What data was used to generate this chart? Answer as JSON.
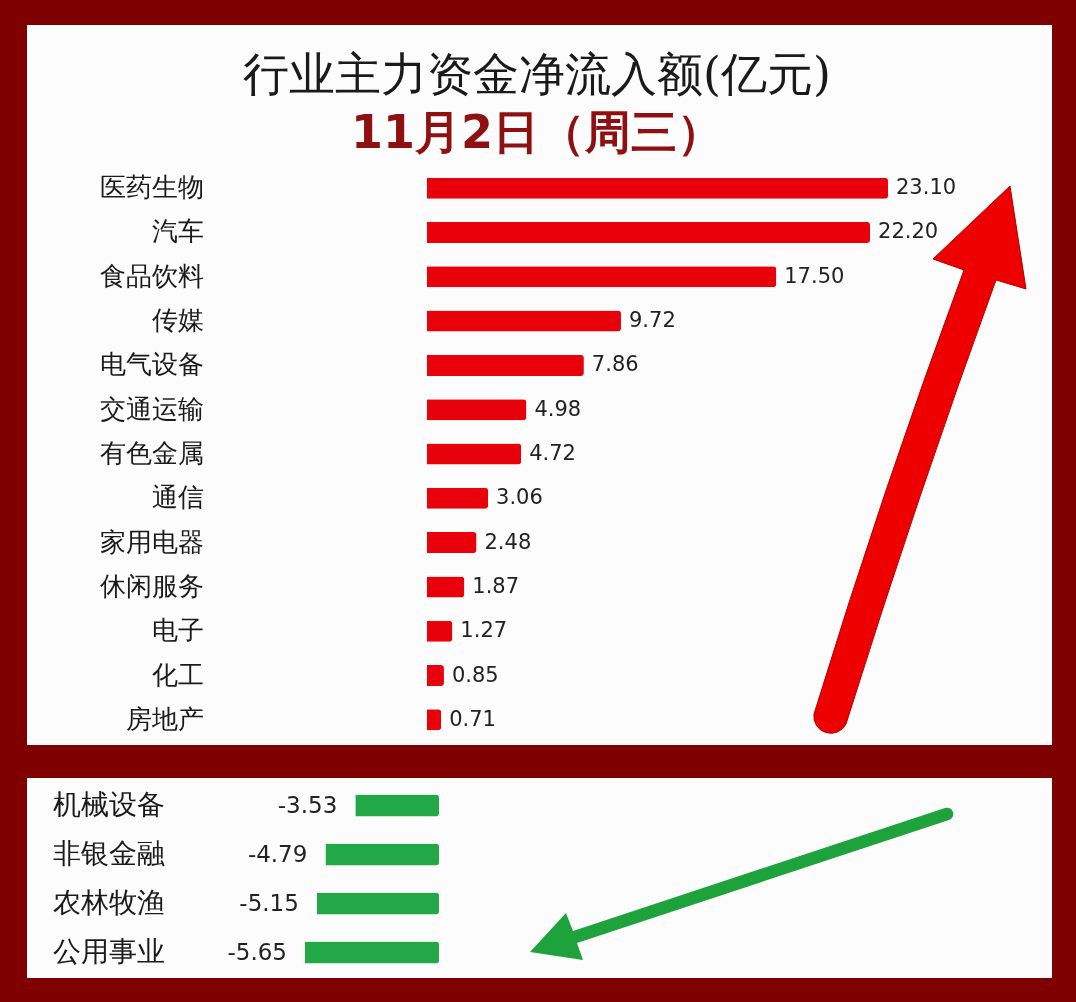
{
  "chart_data": [
    {
      "type": "bar",
      "orientation": "horizontal",
      "title": "行业主力资金净流入额(亿元)",
      "subtitle": "11月2日（周三）",
      "categories": [
        "医药生物",
        "汽车",
        "食品饮料",
        "传媒",
        "电气设备",
        "交通运输",
        "有色金属",
        "通信",
        "家用电器",
        "休闲服务",
        "电子",
        "化工",
        "房地产"
      ],
      "values": [
        23.1,
        22.2,
        17.5,
        9.72,
        7.86,
        4.98,
        4.72,
        3.06,
        2.48,
        1.87,
        1.27,
        0.85,
        0.71
      ],
      "value_labels": [
        "23.10",
        "22.20",
        "17.50",
        "9.72",
        "7.86",
        "4.98",
        "4.72",
        "3.06",
        "2.48",
        "1.87",
        "1.27",
        "0.85",
        "0.71"
      ],
      "color": "#e8000b"
    },
    {
      "type": "bar",
      "orientation": "horizontal",
      "categories": [
        "机械设备",
        "非银金融",
        "农林牧渔",
        "公用事业"
      ],
      "values": [
        -3.53,
        -4.79,
        -5.15,
        -5.65
      ],
      "value_labels": [
        "-3.53",
        "-4.79",
        "-5.15",
        "-5.65"
      ],
      "color": "#22a846"
    }
  ]
}
